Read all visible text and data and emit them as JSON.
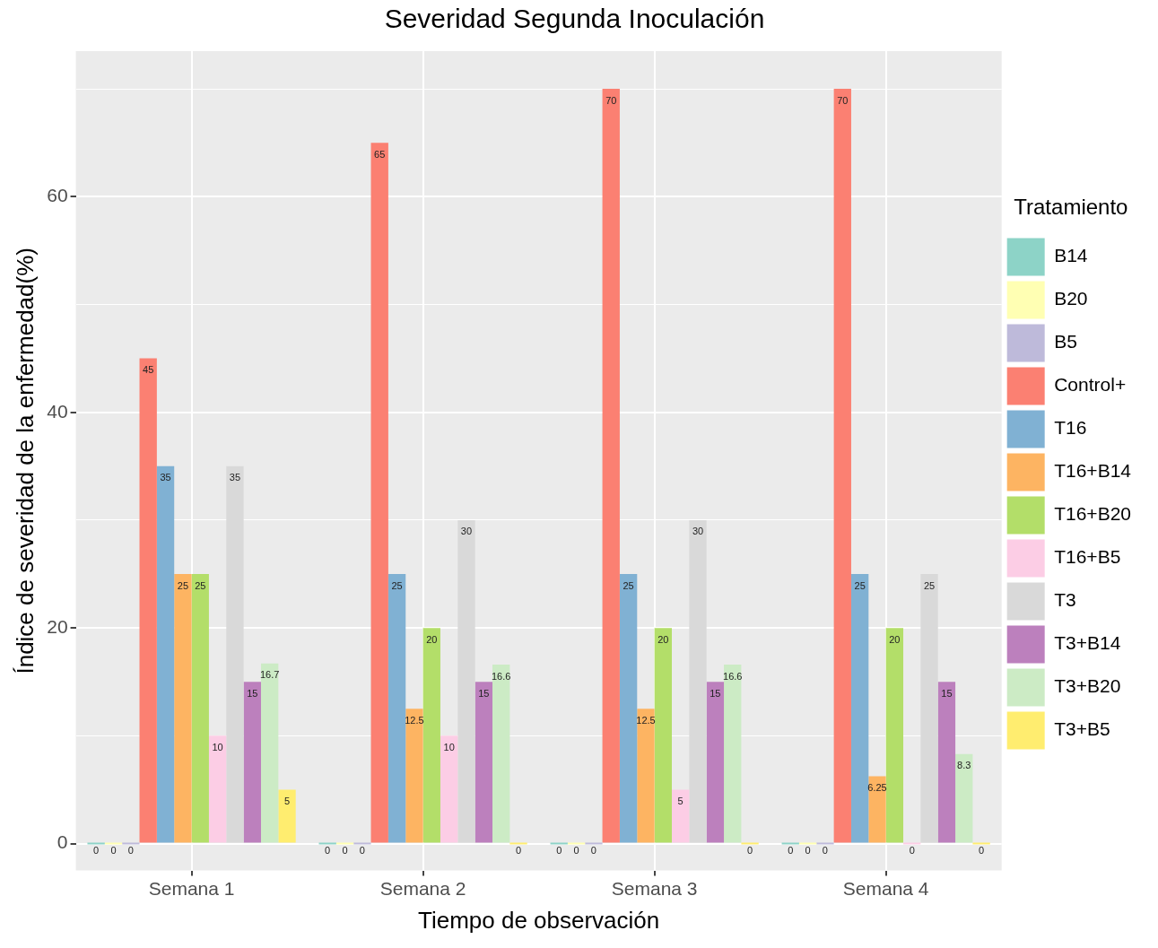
{
  "chart_data": {
    "type": "bar",
    "title": "Severidad Segunda Inoculación",
    "xlabel": "Tiempo de observación",
    "ylabel": "Índice de severidad de la enfermedad(%)",
    "legend_title": "Tratamiento",
    "categories": [
      "Semana 1",
      "Semana 2",
      "Semana 3",
      "Semana 4"
    ],
    "series": [
      {
        "name": "B14",
        "color": "#8dd3c7",
        "values": [
          0,
          0,
          0,
          0
        ]
      },
      {
        "name": "B20",
        "color": "#ffffb3",
        "values": [
          0,
          0,
          0,
          0
        ]
      },
      {
        "name": "B5",
        "color": "#bebada",
        "values": [
          0,
          0,
          0,
          0
        ]
      },
      {
        "name": "Control+",
        "color": "#fb8072",
        "values": [
          45,
          65,
          70,
          70
        ]
      },
      {
        "name": "T16",
        "color": "#80b1d3",
        "values": [
          35,
          25,
          25,
          25
        ]
      },
      {
        "name": "T16+B14",
        "color": "#fdb462",
        "values": [
          25,
          12.5,
          12.5,
          6.25
        ]
      },
      {
        "name": "T16+B20",
        "color": "#b3de69",
        "values": [
          25,
          20,
          20,
          20
        ]
      },
      {
        "name": "T16+B5",
        "color": "#fccde5",
        "values": [
          10,
          10,
          5,
          0
        ]
      },
      {
        "name": "T3",
        "color": "#d9d9d9",
        "values": [
          35,
          30,
          30,
          25
        ]
      },
      {
        "name": "T3+B14",
        "color": "#bc80bd",
        "values": [
          15,
          15,
          15,
          15
        ]
      },
      {
        "name": "T3+B20",
        "color": "#ccebc5",
        "values": [
          16.7,
          16.6,
          16.6,
          8.3
        ]
      },
      {
        "name": "T3+B5",
        "color": "#ffed6f",
        "values": [
          5,
          0,
          0,
          0
        ]
      }
    ],
    "ylim": [
      -2.5,
      73.5
    ],
    "yticks": [
      0,
      {
        "value": 10,
        "label": null
      },
      20,
      {
        "value": 30,
        "label": null
      },
      40,
      {
        "value": 50,
        "label": null
      },
      60,
      {
        "value": 70,
        "label": null
      }
    ],
    "grid": true,
    "legend": "right",
    "data_labels": true
  }
}
